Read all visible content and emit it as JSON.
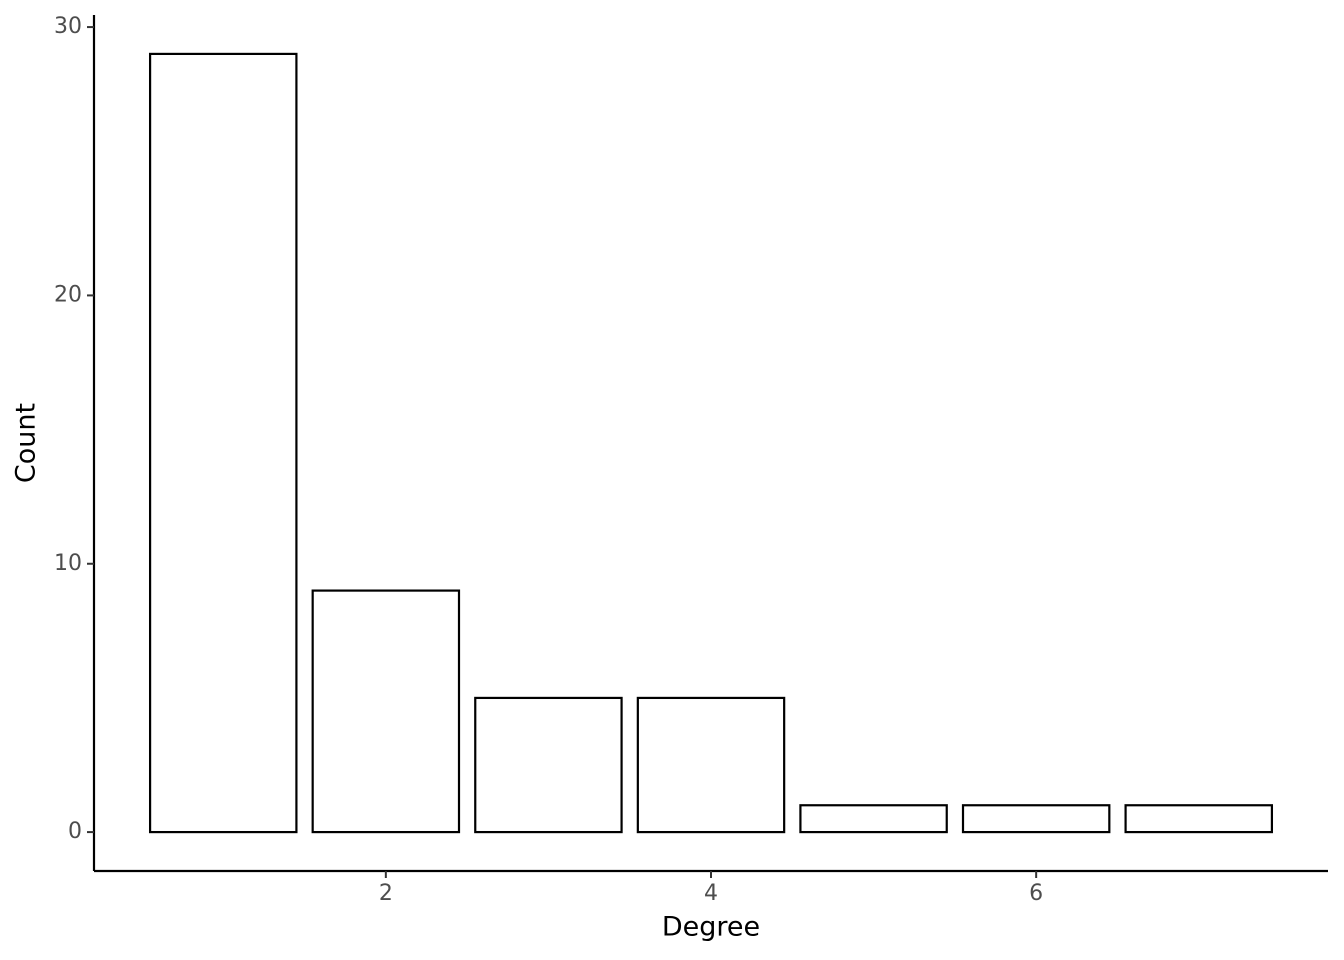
{
  "chart_data": {
    "type": "bar",
    "x_label": "Degree",
    "y_label": "Count",
    "x": [
      1,
      2,
      3,
      4,
      5,
      6,
      7
    ],
    "values": [
      29,
      9,
      5,
      5,
      1,
      1,
      1
    ],
    "color": "#ffffff",
    "edge_color": "#000000",
    "xlim": [
      0.205,
      7.795
    ],
    "xticks": [
      2,
      4,
      6
    ],
    "ylim": [
      -1.45,
      30.45
    ],
    "yticks": [
      0,
      10,
      20,
      30
    ],
    "grid": false
  }
}
